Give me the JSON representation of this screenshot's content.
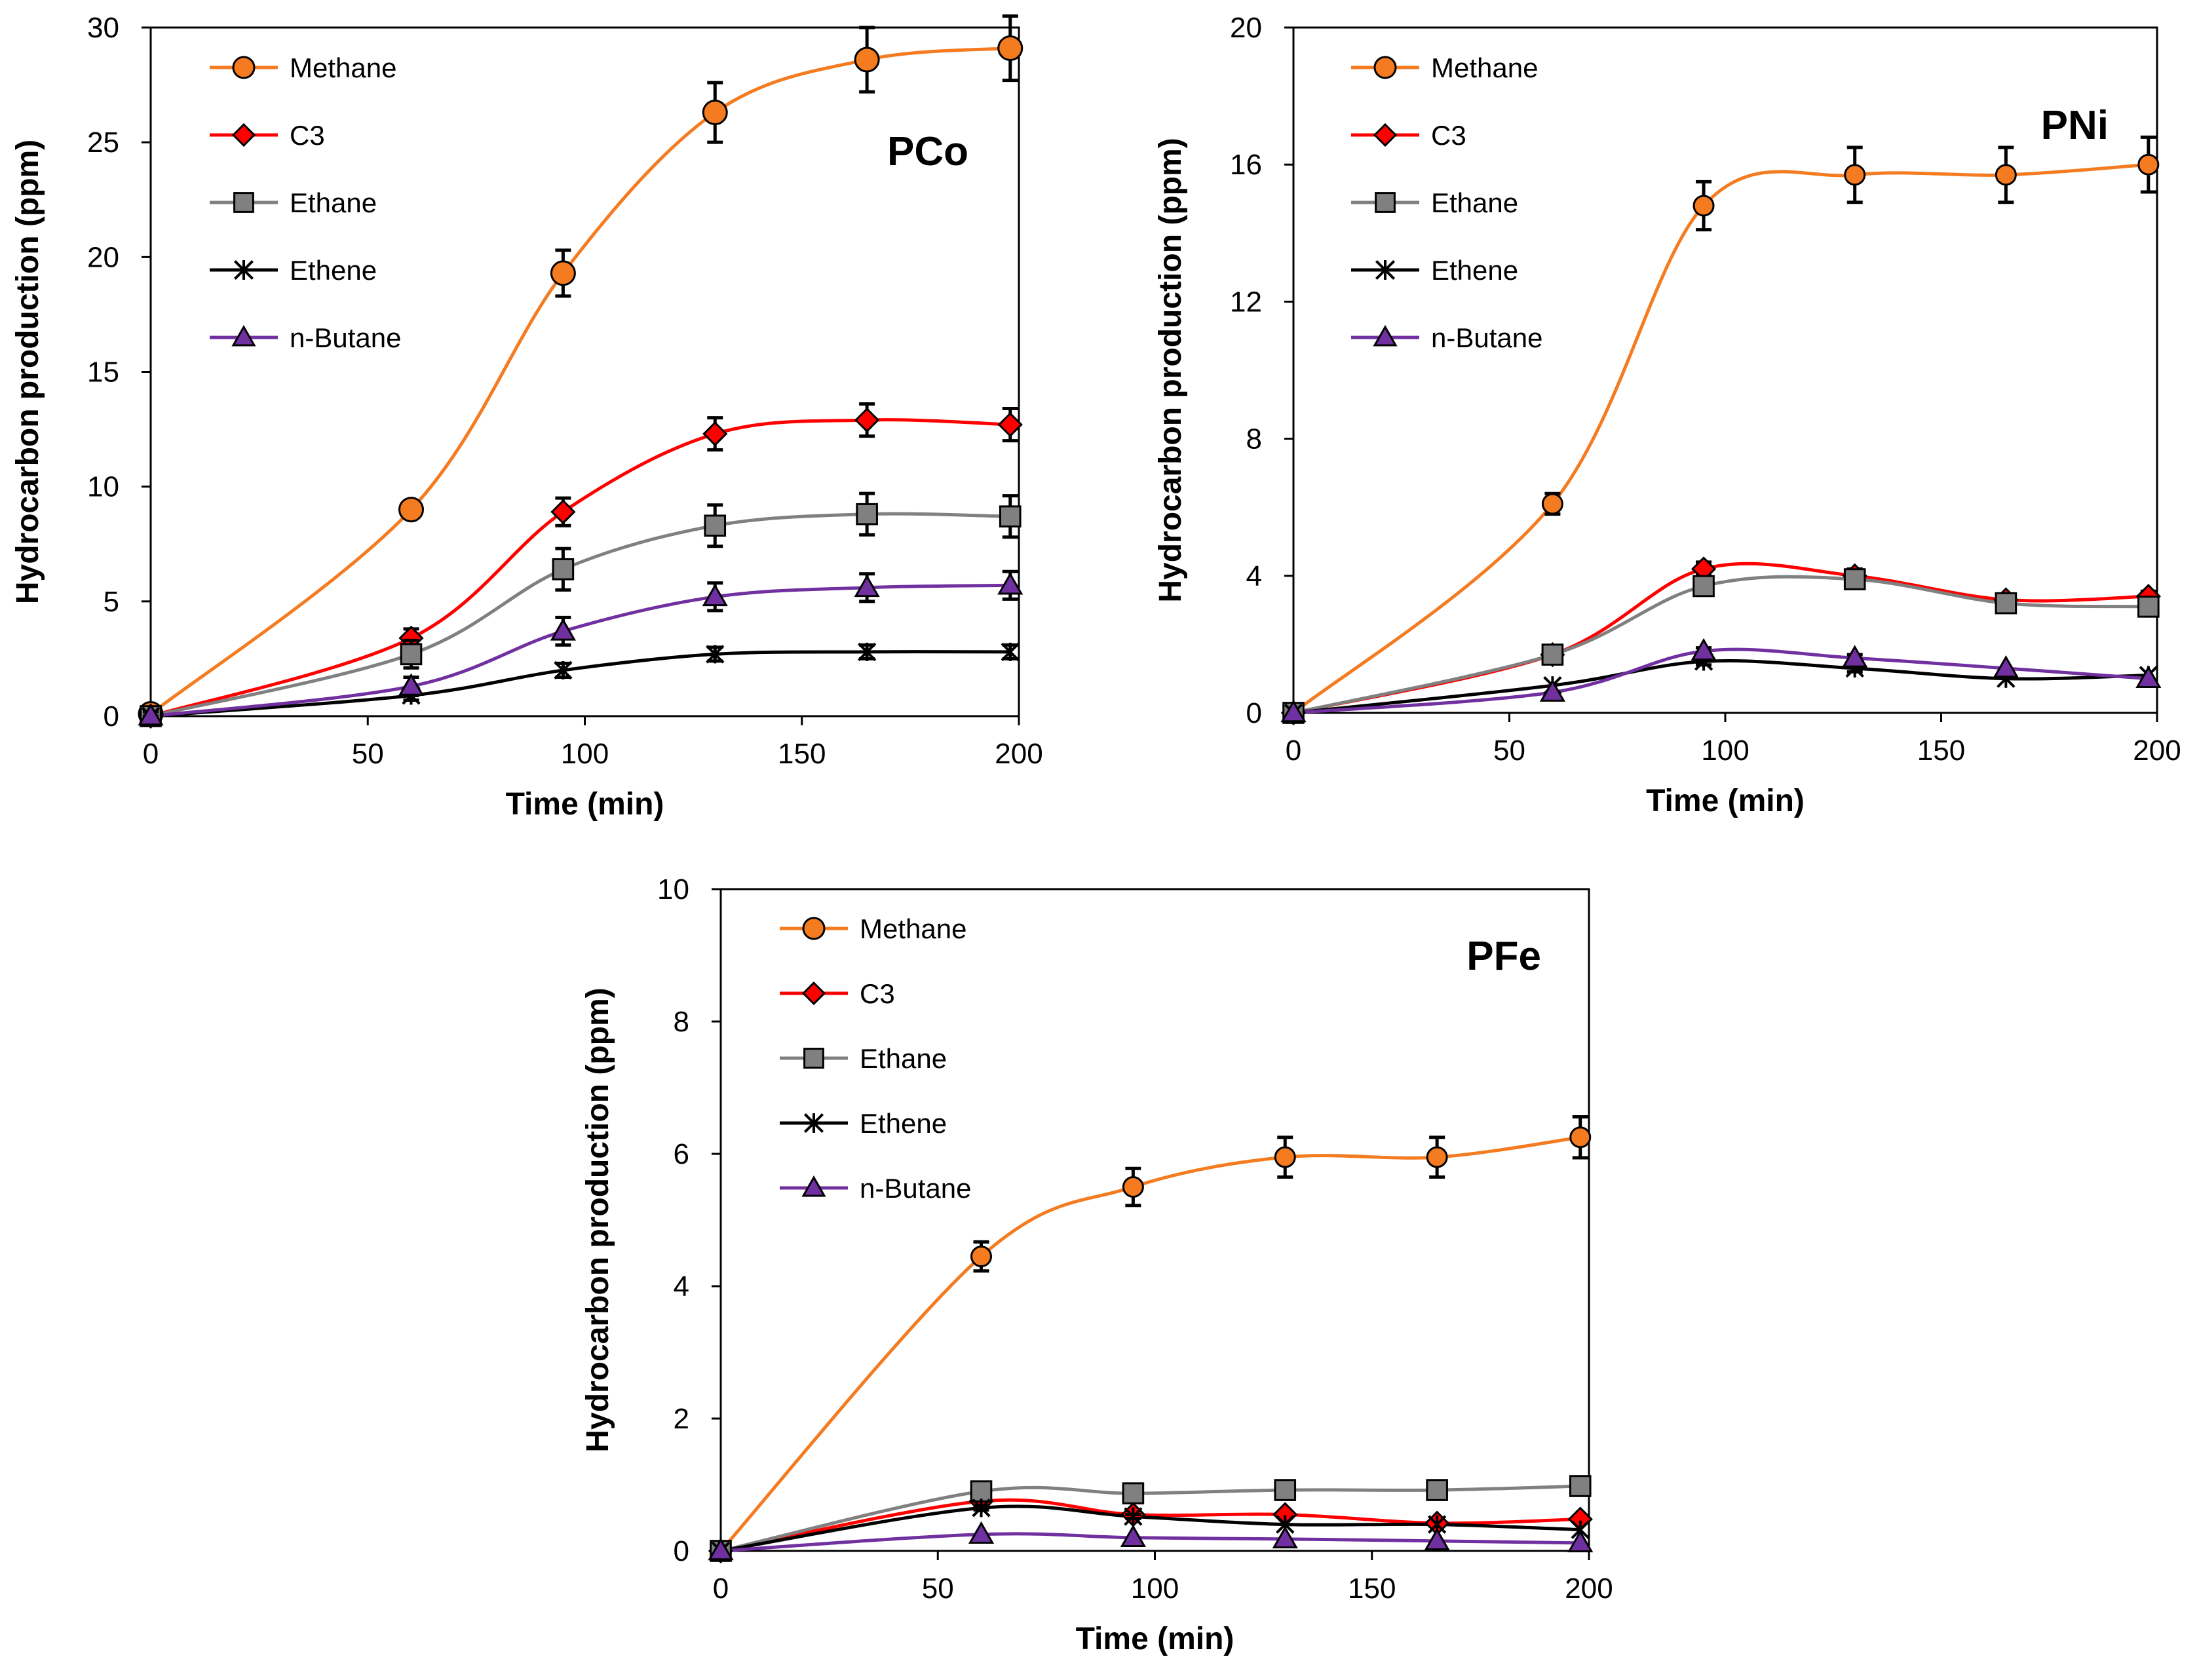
{
  "colors": {
    "Methane": "#F47B20",
    "C3": "#FF0000",
    "Ethane": "#808080",
    "Ethene": "#000000",
    "n-Butane": "#7030A0"
  },
  "chart_data": [
    {
      "type": "line",
      "panel_label": "PCo",
      "xlabel": "Time (min)",
      "ylabel": "Hydrocarbon production (ppm)",
      "xlim": [
        0,
        200
      ],
      "ylim": [
        0,
        30
      ],
      "xticks": [
        0,
        50,
        100,
        150,
        200
      ],
      "yticks": [
        0,
        5,
        10,
        15,
        20,
        25,
        30
      ],
      "x": [
        0,
        60,
        95,
        130,
        165,
        198
      ],
      "legend_position": "top-left",
      "series": [
        {
          "name": "Methane",
          "marker": "circle",
          "values": [
            0.1,
            9.0,
            19.3,
            26.3,
            28.6,
            29.1
          ],
          "errors": [
            0.2,
            0.3,
            1.0,
            1.3,
            1.4,
            1.4
          ]
        },
        {
          "name": "C3",
          "marker": "diamond",
          "values": [
            0.0,
            3.4,
            8.9,
            12.3,
            12.9,
            12.7
          ],
          "errors": [
            0.3,
            0.4,
            0.6,
            0.7,
            0.7,
            0.7
          ]
        },
        {
          "name": "Ethane",
          "marker": "square",
          "values": [
            0.0,
            2.7,
            6.4,
            8.3,
            8.8,
            8.7
          ],
          "errors": [
            0.4,
            0.6,
            0.9,
            0.9,
            0.9,
            0.9
          ]
        },
        {
          "name": "Ethene",
          "marker": "asterisk",
          "values": [
            0.0,
            0.9,
            2.0,
            2.7,
            2.8,
            2.8
          ],
          "errors": [
            0.2,
            0.2,
            0.3,
            0.3,
            0.3,
            0.3
          ]
        },
        {
          "name": "n-Butane",
          "marker": "triangle",
          "values": [
            0.0,
            1.3,
            3.7,
            5.2,
            5.6,
            5.7
          ],
          "errors": [
            0.2,
            0.4,
            0.6,
            0.6,
            0.6,
            0.6
          ]
        }
      ]
    },
    {
      "type": "line",
      "panel_label": "PNi",
      "xlabel": "Time (min)",
      "ylabel": "Hydrocarbon production (ppm)",
      "xlim": [
        0,
        200
      ],
      "ylim": [
        0,
        20
      ],
      "xticks": [
        0,
        50,
        100,
        150,
        200
      ],
      "yticks": [
        0,
        4,
        8,
        12,
        16,
        20
      ],
      "x": [
        0,
        60,
        95,
        130,
        165,
        198
      ],
      "legend_position": "top-left",
      "series": [
        {
          "name": "Methane",
          "marker": "circle",
          "values": [
            0.0,
            6.1,
            14.8,
            15.7,
            15.7,
            16.0
          ],
          "errors": [
            0.1,
            0.3,
            0.7,
            0.8,
            0.8,
            0.8
          ]
        },
        {
          "name": "C3",
          "marker": "diamond",
          "values": [
            0.0,
            1.7,
            4.2,
            4.0,
            3.3,
            3.4
          ],
          "errors": [
            0.05,
            0.1,
            0.2,
            0.2,
            0.15,
            0.15
          ]
        },
        {
          "name": "Ethane",
          "marker": "square",
          "values": [
            0.0,
            1.7,
            3.7,
            3.9,
            3.2,
            3.1
          ],
          "errors": [
            0.05,
            0.1,
            0.2,
            0.2,
            0.15,
            0.15
          ]
        },
        {
          "name": "Ethene",
          "marker": "asterisk",
          "values": [
            0.0,
            0.8,
            1.5,
            1.3,
            1.0,
            1.1
          ],
          "errors": [
            0.05,
            0.05,
            0.1,
            0.1,
            0.05,
            0.05
          ]
        },
        {
          "name": "n-Butane",
          "marker": "triangle",
          "values": [
            0.0,
            0.6,
            1.8,
            1.6,
            1.3,
            1.0
          ],
          "errors": [
            0.05,
            0.05,
            0.1,
            0.1,
            0.05,
            0.05
          ]
        }
      ]
    },
    {
      "type": "line",
      "panel_label": "PFe",
      "xlabel": "Time (min)",
      "ylabel": "Hydrocarbon production (ppm)",
      "xlim": [
        0,
        200
      ],
      "ylim": [
        0,
        10
      ],
      "xticks": [
        0,
        50,
        100,
        150,
        200
      ],
      "yticks": [
        0,
        2,
        4,
        6,
        8,
        10
      ],
      "x": [
        0,
        60,
        95,
        130,
        165,
        198
      ],
      "legend_position": "top-left",
      "series": [
        {
          "name": "Methane",
          "marker": "circle",
          "values": [
            0.0,
            4.45,
            5.5,
            5.95,
            5.95,
            6.25
          ],
          "errors": [
            0.02,
            0.22,
            0.28,
            0.3,
            0.3,
            0.31
          ]
        },
        {
          "name": "C3",
          "marker": "diamond",
          "values": [
            0.0,
            0.75,
            0.55,
            0.55,
            0.42,
            0.48
          ],
          "errors": [
            0.02,
            0.04,
            0.03,
            0.03,
            0.02,
            0.02
          ]
        },
        {
          "name": "Ethane",
          "marker": "square",
          "values": [
            0.0,
            0.9,
            0.87,
            0.92,
            0.92,
            0.98
          ],
          "errors": [
            0.02,
            0.04,
            0.04,
            0.05,
            0.05,
            0.05
          ]
        },
        {
          "name": "Ethene",
          "marker": "asterisk",
          "values": [
            0.0,
            0.65,
            0.52,
            0.4,
            0.4,
            0.32
          ],
          "errors": [
            0.02,
            0.03,
            0.03,
            0.02,
            0.02,
            0.02
          ]
        },
        {
          "name": "n-Butane",
          "marker": "triangle",
          "values": [
            0.0,
            0.25,
            0.2,
            0.18,
            0.15,
            0.12
          ],
          "errors": [
            0.01,
            0.01,
            0.01,
            0.01,
            0.01,
            0.01
          ]
        }
      ]
    }
  ]
}
